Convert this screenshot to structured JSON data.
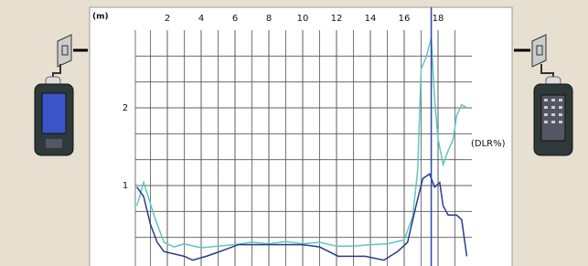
{
  "chart_data": {
    "type": "line",
    "x_label": "(m)",
    "y2_label": "(DLR%)",
    "xlim": [
      0,
      20
    ],
    "xticks": [
      2,
      4,
      6,
      8,
      10,
      12,
      14,
      16,
      18
    ],
    "x_minor": 2,
    "ylim": [
      0,
      3
    ],
    "yticks": [
      1,
      2
    ],
    "y_minor": 3,
    "grid": true,
    "cursor": 17.6,
    "cursor_color": "#3344aa",
    "series": [
      {
        "color": "#5cc8c0",
        "x": [
          0.2,
          0.6,
          1.3,
          1.8,
          2.4,
          3,
          4,
          5,
          6,
          7,
          8,
          9,
          10,
          11,
          12,
          13,
          14,
          15,
          16,
          16.5,
          16.8,
          17,
          17.3,
          17.6,
          17.8,
          18,
          18.3,
          18.6,
          18.9,
          19.1,
          19.4,
          19.7
        ],
        "values": [
          0.74,
          1.04,
          0.56,
          0.27,
          0.21,
          0.25,
          0.2,
          0.22,
          0.24,
          0.27,
          0.25,
          0.28,
          0.25,
          0.27,
          0.22,
          0.22,
          0.24,
          0.25,
          0.3,
          0.6,
          1.2,
          2.5,
          2.65,
          2.9,
          2.1,
          1.6,
          1.27,
          1.45,
          1.6,
          1.9,
          2.04,
          2.0
        ]
      },
      {
        "color": "#2a3a8c",
        "x": [
          0.2,
          0.6,
          1,
          1.4,
          1.8,
          3,
          3.5,
          4.3,
          5.1,
          6.2,
          8.3,
          10,
          11,
          12.1,
          13.7,
          14.8,
          15.6,
          16.2,
          16.7,
          17.1,
          17.5,
          17.8,
          18.1,
          18.3,
          18.6,
          19.1,
          19.4,
          19.7
        ],
        "values": [
          0.98,
          0.86,
          0.5,
          0.27,
          0.15,
          0.09,
          0.04,
          0.09,
          0.15,
          0.24,
          0.24,
          0.24,
          0.21,
          0.09,
          0.09,
          0.04,
          0.15,
          0.27,
          0.74,
          1.09,
          1.15,
          0.98,
          1.04,
          0.74,
          0.62,
          0.62,
          0.56,
          0.09
        ]
      }
    ]
  }
}
